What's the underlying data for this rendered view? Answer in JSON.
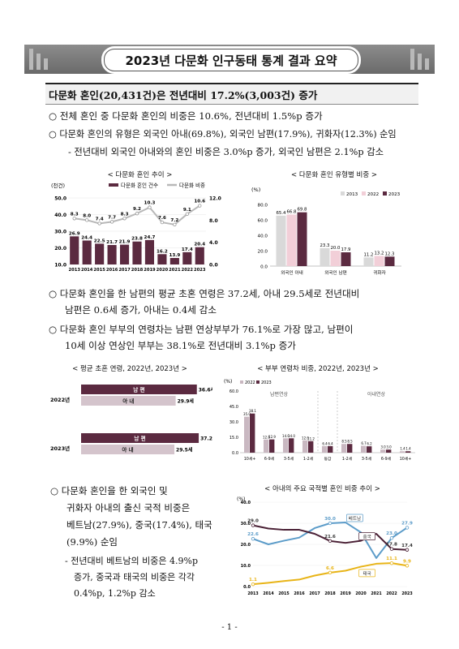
{
  "title": "2023년 다문화 인구동태 통계 결과 요약",
  "section": "다문화 혼인(20,431건)은 전년대비 17.2%(3,003건) 증가",
  "bullets": {
    "b1": "○ 전체 혼인 중 다문화 혼인의 비중은 10.6%, 전년대비 1.5%p 증가",
    "b2": "○ 다문화 혼인의 유형은 외국인 아내(69.8%), 외국인 남편(17.9%), 귀화자(12.3%) 순임",
    "b2sub": "- 전년대비 외국인 아내와의 혼인 비중은 3.0%p 증가, 외국인 남편은 2.1%p 감소",
    "b3a": "○ 다문화 혼인을 한 남편의 평균 초혼 연령은 37.2세, 아내 29.5세로 전년대비",
    "b3b": "남편은 0.6세 증가, 아내는 0.4세 감소",
    "b4a": "○ 다문화 혼인 부부의 연령차는 남편 연상부부가 76.1%로 가장 많고, 남편이",
    "b4b": "10세 이상 연상인 부부는 38.1%로 전년대비 3.1%p 증가",
    "b5": [
      "○ 다문화 혼인을 한 외국인 및",
      "귀화자 아내의 출신 국적 비중은",
      "베트남(27.9%), 중국(17.4%), 태국",
      "(9.9%) 순임"
    ],
    "b5sub": [
      "- 전년대비 베트남의 비중은 4.9%p",
      "증가, 중국과 태국의 비중은 각각",
      "0.4%p, 1.2%p 감소"
    ]
  },
  "page_number": "- 1 -",
  "chart_data": [
    {
      "type": "bar",
      "title": "< 다문화 혼인 추이 >",
      "unit_left": "(천건)",
      "legend": [
        "다문화 혼인 건수",
        "다문화 비중"
      ],
      "categories": [
        "2013",
        "2014",
        "2015",
        "2016",
        "2017",
        "2018",
        "2019",
        "2020",
        "2021",
        "2022",
        "2023"
      ],
      "series": [
        {
          "name": "다문화 혼인 건수",
          "values": [
            26.9,
            24.4,
            22.5,
            21.7,
            21.9,
            23.8,
            24.7,
            16.2,
            13.9,
            17.4,
            20.4
          ]
        },
        {
          "name": "다문화 비중",
          "values": [
            8.3,
            8.0,
            7.4,
            7.7,
            8.3,
            9.2,
            10.3,
            7.6,
            7.2,
            9.1,
            10.6
          ]
        }
      ],
      "ylim_left": [
        10.0,
        50.0
      ],
      "yticks_left": [
        "10.0",
        "20.0",
        "30.0",
        "40.0",
        "50.0"
      ],
      "ylim_right": [
        0.0,
        12.0
      ],
      "yticks_right": [
        "0.0",
        "4.0",
        "8.0",
        "12.0"
      ],
      "colors": {
        "bar": "#5b2a40",
        "line": "#b8b8b8"
      }
    },
    {
      "type": "bar",
      "title": "< 다문화 혼인 유형별 비중 >",
      "unit": "(%)",
      "categories": [
        "외국인 아내",
        "외국인 남편",
        "귀화자"
      ],
      "series": [
        {
          "name": "2013",
          "values": [
            65.4,
            23.3,
            11.2
          ]
        },
        {
          "name": "2022",
          "values": [
            66.8,
            20.0,
            13.2
          ]
        },
        {
          "name": "2023",
          "values": [
            69.8,
            17.9,
            12.3
          ]
        }
      ],
      "ylim": [
        0.0,
        80.0
      ],
      "yticks": [
        "0.0",
        "20.0",
        "40.0",
        "60.0",
        "80.0"
      ],
      "colors": [
        "#d9d9d9",
        "#f2cfd8",
        "#5b2a40"
      ]
    },
    {
      "type": "bar",
      "title": "< 평균 초혼 연령, 2022년, 2023년 >",
      "groups": [
        {
          "year": "2022년",
          "bars": [
            {
              "label": "남 편",
              "value": 36.6,
              "text": "36.6세"
            },
            {
              "label": "아 내",
              "value": 29.9,
              "text": "29.9세"
            }
          ]
        },
        {
          "year": "2023년",
          "bars": [
            {
              "label": "남 편",
              "value": 37.2,
              "text": "37.2세"
            },
            {
              "label": "아 내",
              "value": 29.5,
              "text": "29.5세"
            }
          ]
        }
      ],
      "colors": {
        "husband": "#5b2a40",
        "wife": "#d4c4cc"
      }
    },
    {
      "type": "bar",
      "title": "< 부부 연령차 비중, 2022년, 2023년 >",
      "unit": "(%)",
      "legend": [
        "2022",
        "2023"
      ],
      "group_labels": [
        "남편연상",
        "아내연상"
      ],
      "categories": [
        "10세+",
        "6-9세",
        "3-5세",
        "1-2세",
        "동갑",
        "1-2세",
        "3-5세",
        "6-9세",
        "10세+"
      ],
      "series": [
        {
          "name": "2022",
          "values": [
            35.0,
            12.8,
            14.0,
            12.0,
            6.4,
            8.5,
            6.7,
            3.0,
            1.4
          ]
        },
        {
          "name": "2023",
          "values": [
            38.1,
            12.9,
            14.0,
            11.2,
            6.4,
            8.5,
            6.2,
            3.0,
            1.4
          ]
        }
      ],
      "ylim": [
        0.0,
        60.0
      ],
      "yticks": [
        "0.0",
        "15.0",
        "30.0",
        "45.0",
        "60.0"
      ],
      "colors": [
        "#c9b8c1",
        "#5b2a40"
      ]
    },
    {
      "type": "line",
      "title": "< 아내의 주요 국적별 혼인 비중 추이 >",
      "unit": "(%)",
      "x": [
        "2013",
        "2014",
        "2015",
        "2016",
        "2017",
        "2018",
        "2019",
        "2020",
        "2021",
        "2022",
        "2023"
      ],
      "series": [
        {
          "name": "베트남",
          "values": [
            22.6,
            20.0,
            21.7,
            23.2,
            27.7,
            30.0,
            30.4,
            25.7,
            13.5,
            23.0,
            27.9
          ],
          "labels": {
            "0": "22.6",
            "5": "30.0",
            "9": "23.0",
            "10": "27.9"
          }
        },
        {
          "name": "중국",
          "values": [
            29.0,
            27.5,
            26.9,
            26.9,
            25.0,
            21.6,
            20.7,
            21.7,
            25.0,
            17.8,
            17.4
          ],
          "labels": {
            "0": "29.0",
            "5": "21.6",
            "9": "17.8",
            "10": "17.4"
          }
        },
        {
          "name": "태국",
          "values": [
            1.1,
            1.8,
            2.6,
            3.3,
            5.2,
            6.6,
            7.5,
            9.4,
            10.8,
            11.1,
            9.9
          ],
          "labels": {
            "0": "1.1",
            "5": "6.6",
            "9": "11.1",
            "10": "9.9"
          }
        }
      ],
      "ylim": [
        0.0,
        40.0
      ],
      "yticks": [
        "0.0",
        "10.0",
        "20.0",
        "30.0",
        "40.0"
      ],
      "colors": [
        "#5c9cc9",
        "#4a2035",
        "#e8b417"
      ]
    }
  ]
}
